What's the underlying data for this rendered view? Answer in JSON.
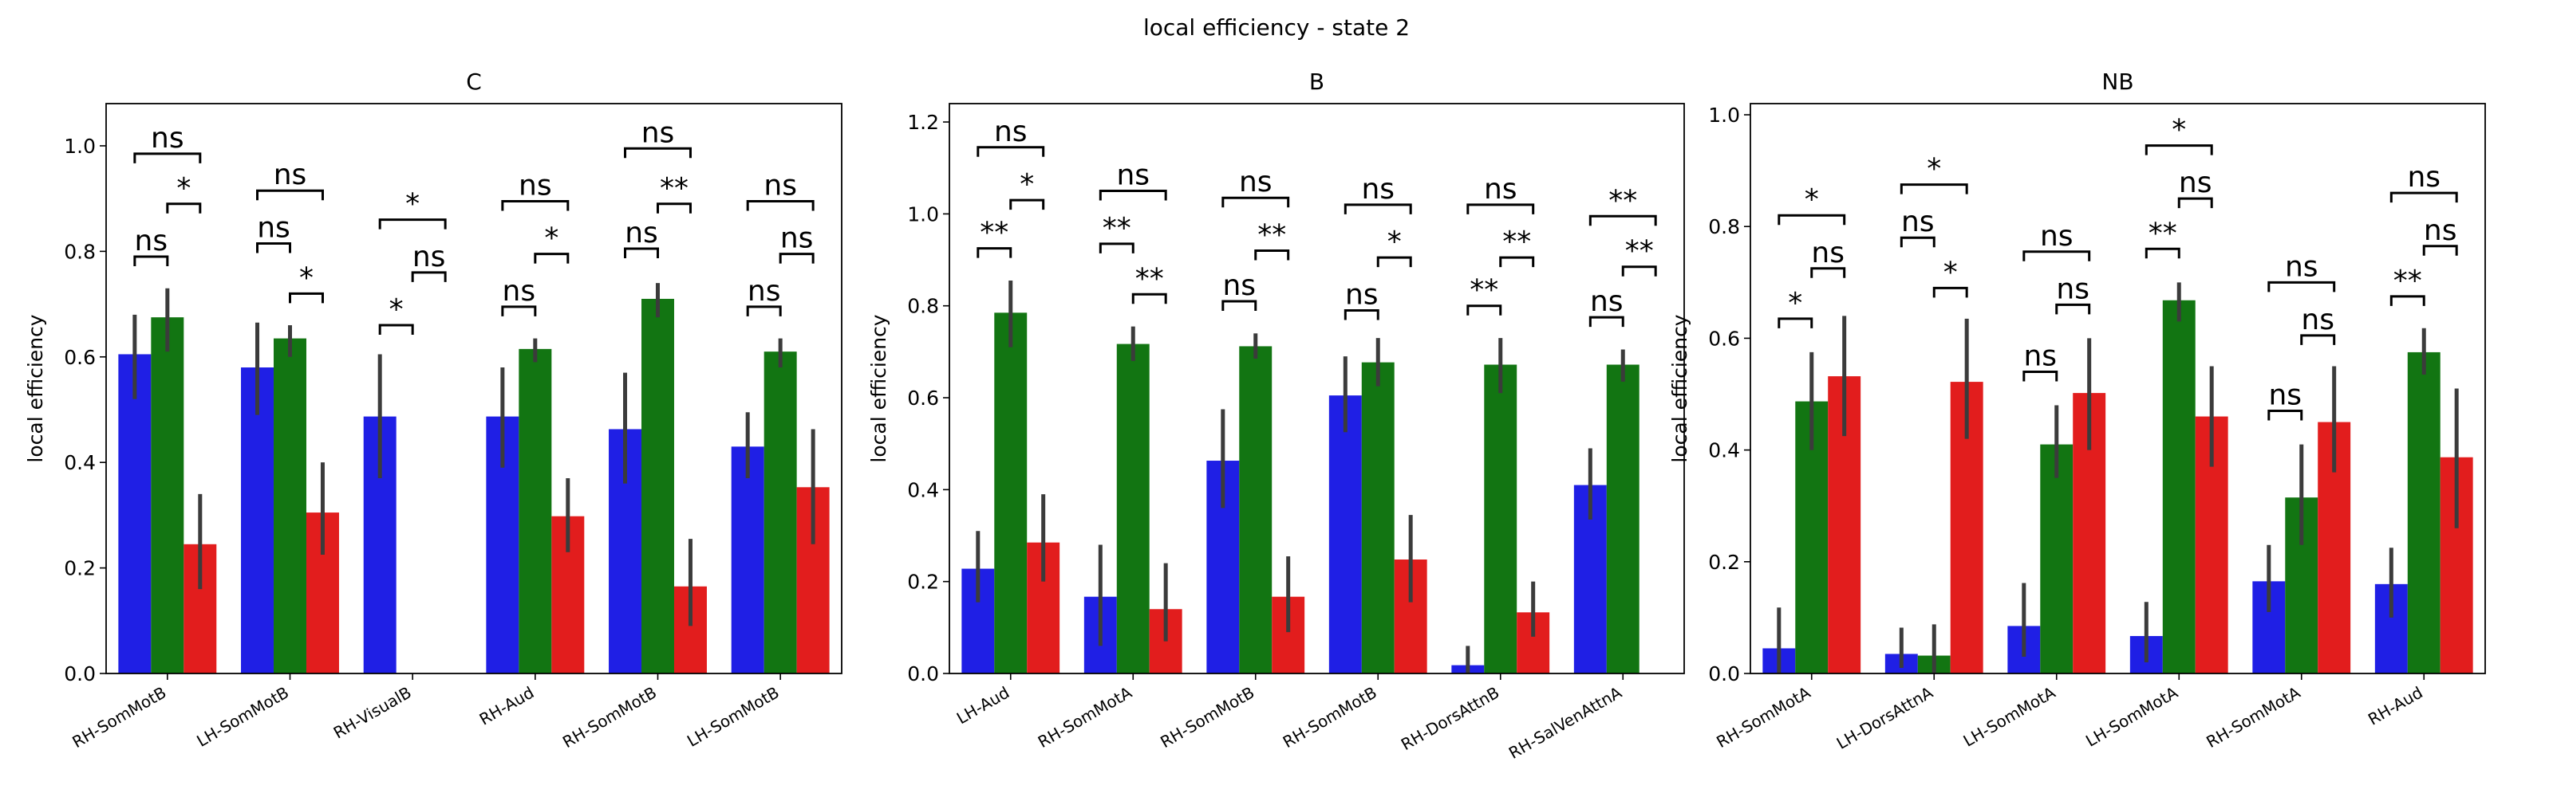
{
  "figure": {
    "suptitle": "local efficiency - state 2"
  },
  "colors": {
    "blue": "#1f1fe5",
    "green": "#127512",
    "red": "#e21d1d",
    "errorbar": "#3b3b3b"
  },
  "chart_data": [
    {
      "type": "bar",
      "title": "C",
      "ylabel": "local efficiency",
      "ylim": [
        0,
        1.08
      ],
      "yticks": [
        0.0,
        0.2,
        0.4,
        0.6,
        0.8,
        1.0
      ],
      "ytick_labels": [
        "0.0",
        "0.2",
        "0.4",
        "0.6",
        "0.8",
        "1.0"
      ],
      "categories": [
        "RH-SomMotB",
        "LH-SomMotB",
        "RH-VisualB",
        "RH-Aud",
        "RH-SomMotB",
        "LH-SomMotB"
      ],
      "series": [
        {
          "color": "blue",
          "values": [
            0.605,
            0.58,
            0.487,
            0.487,
            0.463,
            0.43
          ],
          "err_low": [
            0.52,
            0.49,
            0.37,
            0.39,
            0.36,
            0.37
          ],
          "err_high": [
            0.68,
            0.665,
            0.605,
            0.58,
            0.57,
            0.495
          ]
        },
        {
          "color": "green",
          "values": [
            0.675,
            0.635,
            null,
            0.615,
            0.71,
            0.61
          ],
          "err_low": [
            0.61,
            0.6,
            null,
            0.59,
            0.675,
            0.58
          ],
          "err_high": [
            0.73,
            0.66,
            null,
            0.635,
            0.74,
            0.635
          ]
        },
        {
          "color": "red",
          "values": [
            0.245,
            0.305,
            null,
            0.298,
            0.165,
            0.353
          ],
          "err_low": [
            0.16,
            0.225,
            null,
            0.23,
            0.09,
            0.245
          ],
          "err_high": [
            0.34,
            0.4,
            null,
            0.37,
            0.255,
            0.463
          ]
        }
      ],
      "annotations": [
        [
          {
            "a": 0,
            "b": 1,
            "label": "ns",
            "y": 0.79
          },
          {
            "a": 1,
            "b": 2,
            "label": "*",
            "y": 0.89
          },
          {
            "a": 0,
            "b": 2,
            "label": "ns",
            "y": 0.985
          }
        ],
        [
          {
            "a": 0,
            "b": 1,
            "label": "ns",
            "y": 0.815
          },
          {
            "a": 1,
            "b": 2,
            "label": "*",
            "y": 0.72
          },
          {
            "a": 0,
            "b": 2,
            "label": "ns",
            "y": 0.915
          }
        ],
        [
          {
            "a": 0,
            "b": 1,
            "label": "*",
            "y": 0.66
          },
          {
            "a": 1,
            "b": 2,
            "label": "ns",
            "y": 0.76
          },
          {
            "a": 0,
            "b": 2,
            "label": "*",
            "y": 0.86
          }
        ],
        [
          {
            "a": 0,
            "b": 1,
            "label": "ns",
            "y": 0.695
          },
          {
            "a": 1,
            "b": 2,
            "label": "*",
            "y": 0.795
          },
          {
            "a": 0,
            "b": 2,
            "label": "ns",
            "y": 0.895
          }
        ],
        [
          {
            "a": 0,
            "b": 1,
            "label": "ns",
            "y": 0.805
          },
          {
            "a": 1,
            "b": 2,
            "label": "**",
            "y": 0.89
          },
          {
            "a": 0,
            "b": 2,
            "label": "ns",
            "y": 0.995
          }
        ],
        [
          {
            "a": 0,
            "b": 1,
            "label": "ns",
            "y": 0.695
          },
          {
            "a": 1,
            "b": 2,
            "label": "ns",
            "y": 0.795
          },
          {
            "a": 0,
            "b": 2,
            "label": "ns",
            "y": 0.895
          }
        ]
      ]
    },
    {
      "type": "bar",
      "title": "B",
      "ylabel": "local efficiency",
      "ylim": [
        0,
        1.24
      ],
      "yticks": [
        0.0,
        0.2,
        0.4,
        0.6,
        0.8,
        1.0,
        1.2
      ],
      "ytick_labels": [
        "0.0",
        "0.2",
        "0.4",
        "0.6",
        "0.8",
        "1.0",
        "1.2"
      ],
      "categories": [
        "LH-Aud",
        "RH-SomMotA",
        "RH-SomMotB",
        "RH-SomMotB",
        "RH-DorsAttnB",
        "RH-SalVenAttnA"
      ],
      "series": [
        {
          "color": "blue",
          "values": [
            0.228,
            0.167,
            0.463,
            0.605,
            0.018,
            0.41
          ],
          "err_low": [
            0.155,
            0.06,
            0.36,
            0.525,
            0.0,
            0.335
          ],
          "err_high": [
            0.31,
            0.28,
            0.575,
            0.69,
            0.06,
            0.49
          ]
        },
        {
          "color": "green",
          "values": [
            0.785,
            0.717,
            0.712,
            0.677,
            0.672,
            0.672
          ],
          "err_low": [
            0.71,
            0.68,
            0.685,
            0.625,
            0.61,
            0.635
          ],
          "err_high": [
            0.855,
            0.755,
            0.74,
            0.73,
            0.73,
            0.705
          ]
        },
        {
          "color": "red",
          "values": [
            0.285,
            0.14,
            0.167,
            0.248,
            0.133,
            null
          ],
          "err_low": [
            0.2,
            0.07,
            0.09,
            0.155,
            0.08,
            null
          ],
          "err_high": [
            0.39,
            0.24,
            0.255,
            0.345,
            0.2,
            null
          ]
        }
      ],
      "annotations": [
        [
          {
            "a": 0,
            "b": 1,
            "label": "**",
            "y": 0.925
          },
          {
            "a": 1,
            "b": 2,
            "label": "*",
            "y": 1.03
          },
          {
            "a": 0,
            "b": 2,
            "label": "ns",
            "y": 1.145
          }
        ],
        [
          {
            "a": 0,
            "b": 1,
            "label": "**",
            "y": 0.935
          },
          {
            "a": 1,
            "b": 2,
            "label": "**",
            "y": 0.825
          },
          {
            "a": 0,
            "b": 2,
            "label": "ns",
            "y": 1.05
          }
        ],
        [
          {
            "a": 0,
            "b": 1,
            "label": "ns",
            "y": 0.81
          },
          {
            "a": 1,
            "b": 2,
            "label": "**",
            "y": 0.92
          },
          {
            "a": 0,
            "b": 2,
            "label": "ns",
            "y": 1.035
          }
        ],
        [
          {
            "a": 0,
            "b": 1,
            "label": "ns",
            "y": 0.79
          },
          {
            "a": 1,
            "b": 2,
            "label": "*",
            "y": 0.905
          },
          {
            "a": 0,
            "b": 2,
            "label": "ns",
            "y": 1.02
          }
        ],
        [
          {
            "a": 0,
            "b": 1,
            "label": "**",
            "y": 0.8
          },
          {
            "a": 1,
            "b": 2,
            "label": "**",
            "y": 0.905
          },
          {
            "a": 0,
            "b": 2,
            "label": "ns",
            "y": 1.02
          }
        ],
        [
          {
            "a": 0,
            "b": 1,
            "label": "ns",
            "y": 0.775
          },
          {
            "a": 1,
            "b": 2,
            "label": "**",
            "y": 0.885
          },
          {
            "a": 0,
            "b": 2,
            "label": "**",
            "y": 0.995
          }
        ]
      ]
    },
    {
      "type": "bar",
      "title": "NB",
      "ylabel": "local efficiency",
      "ylim": [
        0,
        1.02
      ],
      "yticks": [
        0.0,
        0.2,
        0.4,
        0.6,
        0.8,
        1.0
      ],
      "ytick_labels": [
        "0.0",
        "0.2",
        "0.4",
        "0.6",
        "0.8",
        "1.0"
      ],
      "categories": [
        "RH-SomMotA",
        "LH-DorsAttnA",
        "LH-SomMotA",
        "LH-SomMotA",
        "RH-SomMotA",
        "RH-Aud"
      ],
      "series": [
        {
          "color": "blue",
          "values": [
            0.045,
            0.035,
            0.085,
            0.067,
            0.165,
            0.16
          ],
          "err_low": [
            0.0,
            0.01,
            0.03,
            0.02,
            0.11,
            0.1
          ],
          "err_high": [
            0.118,
            0.082,
            0.162,
            0.128,
            0.23,
            0.225
          ]
        },
        {
          "color": "green",
          "values": [
            0.487,
            0.032,
            0.41,
            0.668,
            0.315,
            0.575
          ],
          "err_low": [
            0.4,
            0.0,
            0.35,
            0.63,
            0.23,
            0.535
          ],
          "err_high": [
            0.575,
            0.088,
            0.48,
            0.7,
            0.41,
            0.618
          ]
        },
        {
          "color": "red",
          "values": [
            0.532,
            0.522,
            0.502,
            0.46,
            0.45,
            0.387
          ],
          "err_low": [
            0.425,
            0.42,
            0.4,
            0.37,
            0.36,
            0.26
          ],
          "err_high": [
            0.64,
            0.635,
            0.6,
            0.55,
            0.55,
            0.51
          ]
        }
      ],
      "annotations": [
        [
          {
            "a": 0,
            "b": 1,
            "label": "*",
            "y": 0.635
          },
          {
            "a": 1,
            "b": 2,
            "label": "ns",
            "y": 0.725
          },
          {
            "a": 0,
            "b": 2,
            "label": "*",
            "y": 0.82
          }
        ],
        [
          {
            "a": 0,
            "b": 1,
            "label": "ns",
            "y": 0.78
          },
          {
            "a": 1,
            "b": 2,
            "label": "*",
            "y": 0.69
          },
          {
            "a": 0,
            "b": 2,
            "label": "*",
            "y": 0.875
          }
        ],
        [
          {
            "a": 0,
            "b": 1,
            "label": "ns",
            "y": 0.54
          },
          {
            "a": 1,
            "b": 2,
            "label": "ns",
            "y": 0.66
          },
          {
            "a": 0,
            "b": 2,
            "label": "ns",
            "y": 0.755
          }
        ],
        [
          {
            "a": 0,
            "b": 1,
            "label": "**",
            "y": 0.76
          },
          {
            "a": 1,
            "b": 2,
            "label": "ns",
            "y": 0.85
          },
          {
            "a": 0,
            "b": 2,
            "label": "*",
            "y": 0.945
          }
        ],
        [
          {
            "a": 0,
            "b": 1,
            "label": "ns",
            "y": 0.47
          },
          {
            "a": 1,
            "b": 2,
            "label": "ns",
            "y": 0.605
          },
          {
            "a": 0,
            "b": 2,
            "label": "ns",
            "y": 0.7
          }
        ],
        [
          {
            "a": 0,
            "b": 1,
            "label": "**",
            "y": 0.675
          },
          {
            "a": 1,
            "b": 2,
            "label": "ns",
            "y": 0.765
          },
          {
            "a": 0,
            "b": 2,
            "label": "ns",
            "y": 0.86
          }
        ]
      ]
    }
  ]
}
